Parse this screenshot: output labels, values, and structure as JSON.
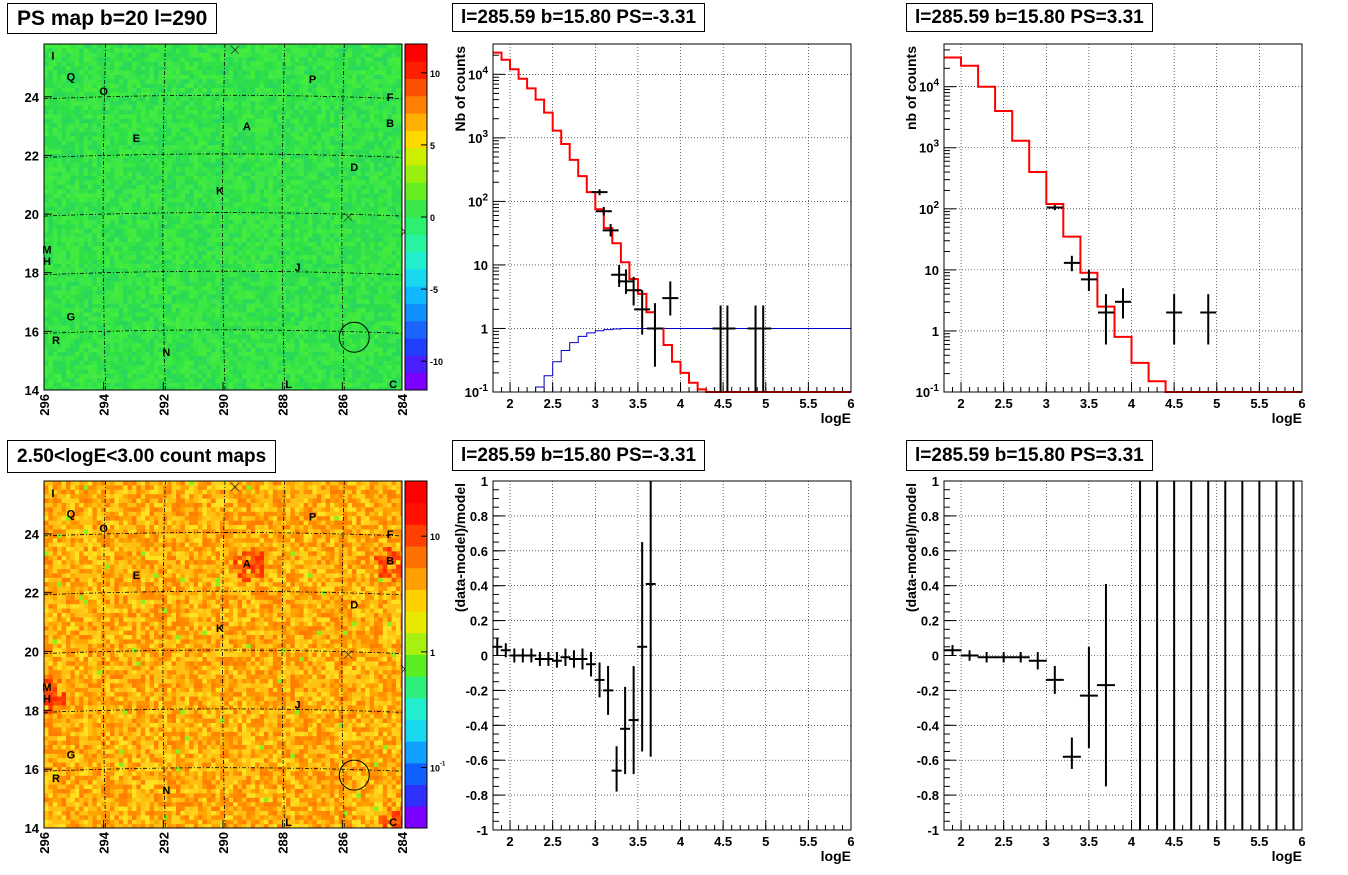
{
  "panels": {
    "ps_map": {
      "title": "PS map b=20 l=290"
    },
    "spec_neg": {
      "title": "l=285.59 b=15.80 PS=-3.31"
    },
    "spec_pos": {
      "title": "l=285.59 b=15.80 PS=3.31"
    },
    "count_map": {
      "title": "2.50<logE<3.00 count maps"
    },
    "resid_neg": {
      "title": "l=285.59 b=15.80 PS=-3.31"
    },
    "resid_pos": {
      "title": "l=285.59 b=15.80 PS=3.31"
    }
  },
  "colors": {
    "model_line": "#ff0000",
    "exposure_line": "#0000cc",
    "data": "#000000"
  },
  "chart_data": [
    {
      "id": "ps_map",
      "type": "heatmap",
      "title": "PS map b=20 l=290",
      "xlim": [
        296,
        284
      ],
      "ylim": [
        14,
        25.8
      ],
      "x_ticks": [
        "296",
        "294",
        "292",
        "290",
        "288",
        "286",
        "284"
      ],
      "y_ticks": [
        "14",
        "16",
        "18",
        "20",
        "22",
        "24"
      ],
      "colorbar": {
        "range": [
          -12,
          12
        ],
        "ticks": [
          "-10",
          "-5",
          "0",
          "5",
          "10"
        ]
      },
      "sources": [
        {
          "label": "I",
          "l": 295.7,
          "b": 25.4
        },
        {
          "label": "Q",
          "l": 295.1,
          "b": 24.7
        },
        {
          "label": "O",
          "l": 294.0,
          "b": 24.2
        },
        {
          "label": "P",
          "l": 287.0,
          "b": 24.6
        },
        {
          "label": "F",
          "l": 284.4,
          "b": 24.0
        },
        {
          "label": "B",
          "l": 284.4,
          "b": 23.1
        },
        {
          "label": "E",
          "l": 292.9,
          "b": 22.6
        },
        {
          "label": "A",
          "l": 289.2,
          "b": 23.0
        },
        {
          "label": "D",
          "l": 285.6,
          "b": 21.6
        },
        {
          "label": "K",
          "l": 290.1,
          "b": 20.8
        },
        {
          "label": "M",
          "l": 295.9,
          "b": 18.8
        },
        {
          "label": "H",
          "l": 295.9,
          "b": 18.4
        },
        {
          "label": "J",
          "l": 287.5,
          "b": 18.2
        },
        {
          "label": "G",
          "l": 295.1,
          "b": 16.5
        },
        {
          "label": "R",
          "l": 295.6,
          "b": 15.7
        },
        {
          "label": "N",
          "l": 291.9,
          "b": 15.3
        },
        {
          "label": "L",
          "l": 287.8,
          "b": 14.2
        },
        {
          "label": "C",
          "l": 284.3,
          "b": 14.2
        }
      ],
      "crosses": [
        {
          "l": 289.6,
          "b": 25.6
        },
        {
          "l": 285.8,
          "b": 19.9
        },
        {
          "l": 283.9,
          "b": 19.4
        }
      ],
      "circle": {
        "l": 285.6,
        "b": 15.8
      }
    },
    {
      "id": "spec_neg",
      "type": "line",
      "title": "l=285.59 b=15.80 PS=-3.31",
      "xlabel": "logE",
      "ylabel": "Nb of counts",
      "xlim": [
        1.8,
        6
      ],
      "ylim": [
        0.1,
        30000
      ],
      "y_log": true,
      "x_ticks": [
        "2",
        "2.5",
        "3",
        "3.5",
        "4",
        "4.5",
        "5",
        "5.5",
        "6"
      ],
      "y_ticks": [
        "10^-1",
        "1",
        "10",
        "10^2",
        "10^3",
        "10^4"
      ],
      "model": {
        "x": [
          1.8,
          1.9,
          2.0,
          2.1,
          2.2,
          2.3,
          2.4,
          2.5,
          2.6,
          2.7,
          2.8,
          2.9,
          3.0,
          3.1,
          3.2,
          3.3,
          3.4,
          3.5,
          3.6,
          3.7,
          3.8,
          3.9,
          4.0,
          4.1,
          4.2,
          4.3,
          6.0
        ],
        "y": [
          22000,
          17000,
          12000,
          8500,
          6000,
          4000,
          2500,
          1300,
          800,
          450,
          250,
          140,
          75,
          38,
          22,
          11,
          6,
          3.5,
          1.8,
          1.0,
          0.55,
          0.3,
          0.2,
          0.14,
          0.11,
          0.1,
          0.1
        ]
      },
      "exposure": {
        "x": [
          1.8,
          2.0,
          2.2,
          2.3,
          2.4,
          2.5,
          2.6,
          2.7,
          2.8,
          2.9,
          3.0,
          3.1,
          3.2,
          3.3,
          3.4,
          3.5,
          6.0
        ],
        "y": [
          0.1,
          0.1,
          0.1,
          0.12,
          0.18,
          0.3,
          0.45,
          0.6,
          0.75,
          0.85,
          0.92,
          0.96,
          0.98,
          1.0,
          1.0,
          1.0,
          1.0
        ]
      },
      "points": [
        {
          "x": 3.05,
          "y": 140,
          "lo": 125,
          "hi": 155
        },
        {
          "x": 3.1,
          "y": 70,
          "lo": 60,
          "hi": 82
        },
        {
          "x": 3.18,
          "y": 35,
          "lo": 28,
          "hi": 44
        },
        {
          "x": 3.28,
          "y": 7,
          "lo": 4.5,
          "hi": 10
        },
        {
          "x": 3.36,
          "y": 5.5,
          "lo": 3.5,
          "hi": 8.5
        },
        {
          "x": 3.45,
          "y": 4,
          "lo": 2.3,
          "hi": 6.5
        },
        {
          "x": 3.55,
          "y": 2,
          "lo": 0.8,
          "hi": 4
        },
        {
          "x": 3.7,
          "y": 1,
          "lo": 0.25,
          "hi": 2.5
        },
        {
          "x": 3.88,
          "y": 3,
          "lo": 1.6,
          "hi": 5.5
        },
        {
          "x": 4.47,
          "y": 1,
          "lo": 0.1,
          "hi": 2.3
        },
        {
          "x": 4.55,
          "y": 1,
          "lo": 0.1,
          "hi": 2.3
        },
        {
          "x": 4.88,
          "y": 1,
          "lo": 0.1,
          "hi": 2.3
        },
        {
          "x": 4.97,
          "y": 1,
          "lo": 0.1,
          "hi": 2.3
        }
      ]
    },
    {
      "id": "spec_pos",
      "type": "line",
      "title": "l=285.59 b=15.80 PS=3.31",
      "xlabel": "logE",
      "ylabel": "nb of counts",
      "xlim": [
        1.8,
        6
      ],
      "ylim": [
        0.1,
        50000
      ],
      "y_log": true,
      "x_ticks": [
        "2",
        "2.5",
        "3",
        "3.5",
        "4",
        "4.5",
        "5",
        "5.5",
        "6"
      ],
      "y_ticks": [
        "10^-1",
        "1",
        "10",
        "10^2",
        "10^3",
        "10^4"
      ],
      "model": {
        "x": [
          1.8,
          2.0,
          2.2,
          2.4,
          2.6,
          2.8,
          3.0,
          3.2,
          3.4,
          3.6,
          3.8,
          4.0,
          4.2,
          4.4,
          6.0
        ],
        "y": [
          30000,
          22000,
          10000,
          4000,
          1300,
          400,
          120,
          35,
          9,
          2.5,
          0.8,
          0.3,
          0.15,
          0.1,
          0.1
        ]
      },
      "points": [
        {
          "x": 3.1,
          "y": 105,
          "lo": 95,
          "hi": 115
        },
        {
          "x": 3.3,
          "y": 13,
          "lo": 9.5,
          "hi": 17
        },
        {
          "x": 3.5,
          "y": 7,
          "lo": 4.5,
          "hi": 10
        },
        {
          "x": 3.7,
          "y": 2,
          "lo": 0.6,
          "hi": 4
        },
        {
          "x": 3.9,
          "y": 3,
          "lo": 1.6,
          "hi": 5
        },
        {
          "x": 4.5,
          "y": 2,
          "lo": 0.6,
          "hi": 4
        },
        {
          "x": 4.9,
          "y": 2,
          "lo": 0.6,
          "hi": 4
        }
      ]
    },
    {
      "id": "count_map",
      "type": "heatmap",
      "title": "2.50<logE<3.00 count maps",
      "xlim": [
        296,
        284
      ],
      "ylim": [
        14,
        25.8
      ],
      "x_ticks": [
        "296",
        "294",
        "292",
        "290",
        "288",
        "286",
        "284"
      ],
      "y_ticks": [
        "14",
        "16",
        "18",
        "20",
        "22",
        "24"
      ],
      "colorbar": {
        "log": true,
        "range": [
          0.03,
          30
        ],
        "ticks": [
          "10^-1",
          "1",
          "10"
        ]
      },
      "hotspots": [
        {
          "l": 289.2,
          "b": 23.0
        },
        {
          "l": 284.4,
          "b": 23.1
        },
        {
          "l": 284.3,
          "b": 14.2
        },
        {
          "l": 295.9,
          "b": 18.6
        }
      ]
    },
    {
      "id": "resid_neg",
      "type": "scatter",
      "title": "l=285.59 b=15.80 PS=-3.31",
      "xlabel": "logE",
      "ylabel": "(data-model)/model",
      "xlim": [
        1.8,
        6
      ],
      "ylim": [
        -1,
        1
      ],
      "x_ticks": [
        "2",
        "2.5",
        "3",
        "3.5",
        "4",
        "4.5",
        "5",
        "5.5",
        "6"
      ],
      "y_ticks": [
        "-1",
        "-0.8",
        "-0.6",
        "-0.4",
        "-0.2",
        "0",
        "0.2",
        "0.4",
        "0.6",
        "0.8",
        "1"
      ],
      "points": [
        {
          "x": 1.85,
          "y": 0.05,
          "lo": 0.0,
          "hi": 0.1
        },
        {
          "x": 1.95,
          "y": 0.03,
          "lo": -0.01,
          "hi": 0.07
        },
        {
          "x": 2.05,
          "y": 0.0,
          "lo": -0.04,
          "hi": 0.04
        },
        {
          "x": 2.15,
          "y": 0.0,
          "lo": -0.04,
          "hi": 0.04
        },
        {
          "x": 2.25,
          "y": 0.0,
          "lo": -0.04,
          "hi": 0.04
        },
        {
          "x": 2.35,
          "y": -0.02,
          "lo": -0.06,
          "hi": 0.02
        },
        {
          "x": 2.45,
          "y": -0.02,
          "lo": -0.06,
          "hi": 0.02
        },
        {
          "x": 2.55,
          "y": -0.03,
          "lo": -0.07,
          "hi": 0.02
        },
        {
          "x": 2.65,
          "y": -0.01,
          "lo": -0.06,
          "hi": 0.04
        },
        {
          "x": 2.75,
          "y": -0.02,
          "lo": -0.07,
          "hi": 0.03
        },
        {
          "x": 2.85,
          "y": -0.02,
          "lo": -0.08,
          "hi": 0.04
        },
        {
          "x": 2.95,
          "y": -0.05,
          "lo": -0.12,
          "hi": 0.02
        },
        {
          "x": 3.05,
          "y": -0.14,
          "lo": -0.24,
          "hi": -0.04
        },
        {
          "x": 3.15,
          "y": -0.2,
          "lo": -0.34,
          "hi": -0.06
        },
        {
          "x": 3.25,
          "y": -0.66,
          "lo": -0.78,
          "hi": -0.52
        },
        {
          "x": 3.35,
          "y": -0.42,
          "lo": -0.68,
          "hi": -0.18
        },
        {
          "x": 3.45,
          "y": -0.37,
          "lo": -0.68,
          "hi": -0.06
        },
        {
          "x": 3.55,
          "y": 0.05,
          "lo": -0.55,
          "hi": 0.65
        },
        {
          "x": 3.65,
          "y": 0.41,
          "lo": -0.58,
          "hi": 1.0
        }
      ]
    },
    {
      "id": "resid_pos",
      "type": "scatter",
      "title": "l=285.59 b=15.80 PS=3.31",
      "xlabel": "logE",
      "ylabel": "(data-model)/model",
      "xlim": [
        1.8,
        6
      ],
      "ylim": [
        -1,
        1
      ],
      "x_ticks": [
        "2",
        "2.5",
        "3",
        "3.5",
        "4",
        "4.5",
        "5",
        "5.5",
        "6"
      ],
      "y_ticks": [
        "-1",
        "-0.8",
        "-0.6",
        "-0.4",
        "-0.2",
        "0",
        "0.2",
        "0.4",
        "0.6",
        "0.8",
        "1"
      ],
      "points": [
        {
          "x": 1.9,
          "y": 0.03,
          "lo": 0.0,
          "hi": 0.06
        },
        {
          "x": 2.1,
          "y": 0.0,
          "lo": -0.03,
          "hi": 0.03
        },
        {
          "x": 2.3,
          "y": -0.01,
          "lo": -0.04,
          "hi": 0.02
        },
        {
          "x": 2.5,
          "y": -0.01,
          "lo": -0.04,
          "hi": 0.02
        },
        {
          "x": 2.7,
          "y": -0.01,
          "lo": -0.04,
          "hi": 0.02
        },
        {
          "x": 2.9,
          "y": -0.03,
          "lo": -0.08,
          "hi": 0.02
        },
        {
          "x": 3.1,
          "y": -0.14,
          "lo": -0.22,
          "hi": -0.06
        },
        {
          "x": 3.3,
          "y": -0.58,
          "lo": -0.65,
          "hi": -0.47
        },
        {
          "x": 3.5,
          "y": -0.23,
          "lo": -0.53,
          "hi": 0.05
        },
        {
          "x": 3.7,
          "y": -0.17,
          "lo": -0.75,
          "hi": 0.41
        }
      ],
      "full_range_bars_x": [
        4.1,
        4.3,
        4.5,
        4.7,
        4.9,
        5.1,
        5.3,
        5.5,
        5.7,
        5.9
      ]
    }
  ]
}
